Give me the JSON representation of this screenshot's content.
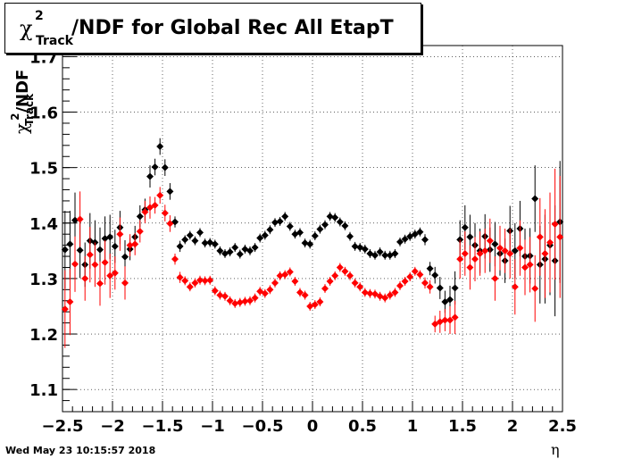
{
  "title": {
    "chi": "χ",
    "superscript": "2",
    "subscript": "Track",
    "text": "/NDF for Global Rec All EtapT"
  },
  "y_axis_label": {
    "chi": "χ",
    "superscript": "2",
    "subscript": "Track",
    "text": "/NDF"
  },
  "x_axis_label": "η",
  "footer_timestamp": "Wed May 23 10:15:57 2018",
  "chart_data": {
    "type": "scatter",
    "xlim": [
      -2.5,
      2.5
    ],
    "ylim": [
      1.06,
      1.72
    ],
    "x_ticks": [
      -2.5,
      -2,
      -1.5,
      -1,
      -0.5,
      0,
      0.5,
      1,
      1.5,
      2,
      2.5
    ],
    "x_tick_labels": [
      "−2.5",
      "−2",
      "−1.5",
      "−1",
      "−0.5",
      "0",
      "0.5",
      "1",
      "1.5",
      "2",
      "2.5"
    ],
    "y_ticks": [
      1.1,
      1.2,
      1.3,
      1.4,
      1.5,
      1.6,
      1.7
    ],
    "y_tick_labels": [
      "1.1",
      "1.2",
      "1.3",
      "1.4",
      "1.5",
      "1.6",
      "1.7"
    ],
    "grid": true,
    "series": [
      {
        "color": "#000000",
        "x": [
          -2.475,
          -2.425,
          -2.375,
          -2.325,
          -2.275,
          -2.225,
          -2.175,
          -2.125,
          -2.075,
          -2.025,
          -1.975,
          -1.925,
          -1.875,
          -1.825,
          -1.775,
          -1.725,
          -1.675,
          -1.625,
          -1.575,
          -1.525,
          -1.475,
          -1.425,
          -1.375,
          -1.325,
          -1.275,
          -1.225,
          -1.175,
          -1.125,
          -1.075,
          -1.025,
          -0.975,
          -0.925,
          -0.875,
          -0.825,
          -0.775,
          -0.725,
          -0.675,
          -0.625,
          -0.575,
          -0.525,
          -0.475,
          -0.425,
          -0.375,
          -0.325,
          -0.275,
          -0.225,
          -0.175,
          -0.125,
          -0.075,
          -0.025,
          0.025,
          0.075,
          0.125,
          0.175,
          0.225,
          0.275,
          0.325,
          0.375,
          0.425,
          0.475,
          0.525,
          0.575,
          0.625,
          0.675,
          0.725,
          0.775,
          0.825,
          0.875,
          0.925,
          0.975,
          1.025,
          1.075,
          1.125,
          1.175,
          1.225,
          1.275,
          1.325,
          1.375,
          1.425,
          1.475,
          1.525,
          1.575,
          1.625,
          1.675,
          1.725,
          1.775,
          1.825,
          1.875,
          1.925,
          1.975,
          2.025,
          2.075,
          2.125,
          2.175,
          2.225,
          2.275,
          2.325,
          2.375,
          2.425,
          2.475
        ],
        "y": [
          1.352,
          1.362,
          1.405,
          1.351,
          1.325,
          1.368,
          1.365,
          1.352,
          1.372,
          1.375,
          1.358,
          1.392,
          1.339,
          1.353,
          1.375,
          1.412,
          1.424,
          1.484,
          1.501,
          1.538,
          1.5,
          1.457,
          1.402,
          1.358,
          1.37,
          1.378,
          1.368,
          1.383,
          1.364,
          1.365,
          1.362,
          1.35,
          1.345,
          1.348,
          1.356,
          1.344,
          1.353,
          1.35,
          1.356,
          1.373,
          1.378,
          1.388,
          1.401,
          1.403,
          1.412,
          1.394,
          1.38,
          1.383,
          1.364,
          1.362,
          1.377,
          1.389,
          1.397,
          1.412,
          1.41,
          1.402,
          1.395,
          1.376,
          1.358,
          1.356,
          1.353,
          1.345,
          1.342,
          1.348,
          1.342,
          1.342,
          1.345,
          1.366,
          1.371,
          1.376,
          1.38,
          1.384,
          1.37,
          1.318,
          1.306,
          1.283,
          1.258,
          1.262,
          1.283,
          1.37,
          1.392,
          1.375,
          1.36,
          1.35,
          1.376,
          1.352,
          1.362,
          1.345,
          1.332,
          1.386,
          1.35,
          1.39,
          1.34,
          1.341,
          1.444,
          1.325,
          1.335,
          1.36,
          1.332,
          1.402
        ],
        "yerr": [
          0.07,
          0.06,
          0.05,
          0.05,
          0.04,
          0.05,
          0.04,
          0.04,
          0.04,
          0.04,
          0.03,
          0.03,
          0.03,
          0.02,
          0.02,
          0.02,
          0.02,
          0.02,
          0.015,
          0.015,
          0.015,
          0.015,
          0.01,
          0.01,
          0.008,
          0.008,
          0.008,
          0.008,
          0.008,
          0.008,
          0.008,
          0.008,
          0.008,
          0.008,
          0.008,
          0.008,
          0.008,
          0.008,
          0.008,
          0.008,
          0.008,
          0.008,
          0.008,
          0.008,
          0.008,
          0.008,
          0.008,
          0.008,
          0.008,
          0.008,
          0.008,
          0.008,
          0.008,
          0.008,
          0.008,
          0.008,
          0.008,
          0.008,
          0.008,
          0.008,
          0.008,
          0.008,
          0.008,
          0.008,
          0.008,
          0.008,
          0.008,
          0.008,
          0.008,
          0.008,
          0.008,
          0.008,
          0.01,
          0.012,
          0.015,
          0.02,
          0.02,
          0.025,
          0.03,
          0.035,
          0.04,
          0.04,
          0.04,
          0.04,
          0.04,
          0.04,
          0.04,
          0.04,
          0.04,
          0.045,
          0.05,
          0.05,
          0.05,
          0.05,
          0.06,
          0.07,
          0.08,
          0.09,
          0.1,
          0.11
        ]
      },
      {
        "color": "#ff0000",
        "x": [
          -2.475,
          -2.425,
          -2.375,
          -2.325,
          -2.275,
          -2.225,
          -2.175,
          -2.125,
          -2.075,
          -2.025,
          -1.975,
          -1.925,
          -1.875,
          -1.825,
          -1.775,
          -1.725,
          -1.675,
          -1.625,
          -1.575,
          -1.525,
          -1.475,
          -1.425,
          -1.375,
          -1.325,
          -1.275,
          -1.225,
          -1.175,
          -1.125,
          -1.075,
          -1.025,
          -0.975,
          -0.925,
          -0.875,
          -0.825,
          -0.775,
          -0.725,
          -0.675,
          -0.625,
          -0.575,
          -0.525,
          -0.475,
          -0.425,
          -0.375,
          -0.325,
          -0.275,
          -0.225,
          -0.175,
          -0.125,
          -0.075,
          -0.025,
          0.025,
          0.075,
          0.125,
          0.175,
          0.225,
          0.275,
          0.325,
          0.375,
          0.425,
          0.475,
          0.525,
          0.575,
          0.625,
          0.675,
          0.725,
          0.775,
          0.825,
          0.875,
          0.925,
          0.975,
          1.025,
          1.075,
          1.125,
          1.175,
          1.225,
          1.275,
          1.325,
          1.375,
          1.425,
          1.475,
          1.525,
          1.575,
          1.625,
          1.675,
          1.725,
          1.775,
          1.825,
          1.875,
          1.925,
          1.975,
          2.025,
          2.075,
          2.125,
          2.175,
          2.225,
          2.275,
          2.325,
          2.375,
          2.425,
          2.475
        ],
        "y": [
          1.245,
          1.258,
          1.326,
          1.407,
          1.3,
          1.343,
          1.325,
          1.291,
          1.329,
          1.305,
          1.31,
          1.38,
          1.292,
          1.36,
          1.362,
          1.385,
          1.42,
          1.428,
          1.432,
          1.45,
          1.418,
          1.399,
          1.335,
          1.302,
          1.296,
          1.285,
          1.292,
          1.297,
          1.296,
          1.297,
          1.278,
          1.27,
          1.268,
          1.26,
          1.255,
          1.257,
          1.259,
          1.26,
          1.265,
          1.277,
          1.273,
          1.28,
          1.292,
          1.305,
          1.307,
          1.312,
          1.295,
          1.275,
          1.27,
          1.25,
          1.253,
          1.258,
          1.282,
          1.295,
          1.305,
          1.32,
          1.313,
          1.305,
          1.292,
          1.285,
          1.275,
          1.273,
          1.272,
          1.268,
          1.265,
          1.27,
          1.275,
          1.287,
          1.295,
          1.303,
          1.313,
          1.307,
          1.292,
          1.285,
          1.218,
          1.222,
          1.225,
          1.225,
          1.23,
          1.335,
          1.345,
          1.32,
          1.335,
          1.345,
          1.35,
          1.368,
          1.3,
          1.355,
          1.35,
          1.345,
          1.285,
          1.355,
          1.32,
          1.325,
          1.282,
          1.375,
          1.345,
          1.365,
          1.398,
          1.375
        ],
        "yerr": [
          0.07,
          0.06,
          0.05,
          0.05,
          0.04,
          0.05,
          0.04,
          0.04,
          0.04,
          0.04,
          0.03,
          0.03,
          0.03,
          0.02,
          0.02,
          0.02,
          0.02,
          0.02,
          0.015,
          0.015,
          0.015,
          0.015,
          0.01,
          0.01,
          0.008,
          0.008,
          0.008,
          0.008,
          0.008,
          0.008,
          0.008,
          0.008,
          0.008,
          0.008,
          0.008,
          0.008,
          0.008,
          0.008,
          0.008,
          0.008,
          0.008,
          0.008,
          0.008,
          0.008,
          0.008,
          0.008,
          0.008,
          0.008,
          0.008,
          0.008,
          0.008,
          0.008,
          0.008,
          0.008,
          0.008,
          0.008,
          0.008,
          0.008,
          0.008,
          0.008,
          0.008,
          0.008,
          0.008,
          0.008,
          0.008,
          0.008,
          0.008,
          0.008,
          0.008,
          0.008,
          0.008,
          0.008,
          0.01,
          0.012,
          0.015,
          0.02,
          0.02,
          0.025,
          0.03,
          0.035,
          0.04,
          0.04,
          0.04,
          0.04,
          0.04,
          0.04,
          0.04,
          0.04,
          0.04,
          0.045,
          0.05,
          0.05,
          0.05,
          0.05,
          0.06,
          0.07,
          0.08,
          0.09,
          0.1,
          0.11
        ]
      }
    ]
  }
}
